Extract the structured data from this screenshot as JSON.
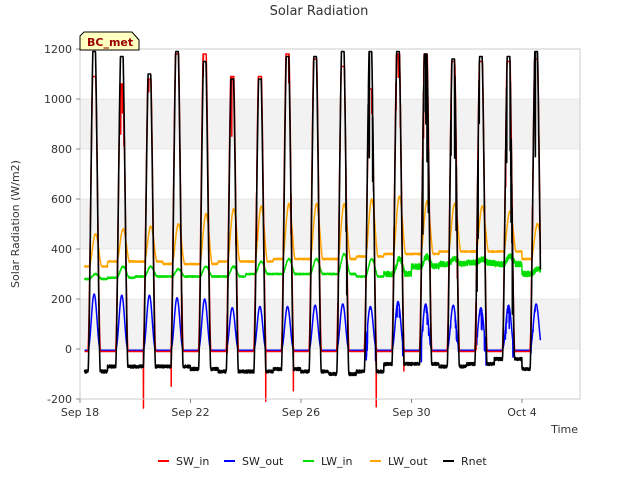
{
  "chart_data": {
    "type": "line",
    "title": "Solar Radiation",
    "xlabel": "Time",
    "ylabel": "Solar Radiation (W/m2)",
    "site_label": "BC_met",
    "x_start_day": "Sep 18",
    "x_tick_labels": [
      "Sep 18",
      "Sep 22",
      "Sep 26",
      "Sep 30",
      "Oct 4"
    ],
    "x_tick_days": [
      0,
      4,
      8,
      12,
      16
    ],
    "xlim_days": [
      0,
      18.1
    ],
    "ylim": [
      -200,
      1200
    ],
    "y_ticks": [
      -200,
      0,
      200,
      400,
      600,
      800,
      1000,
      1200
    ],
    "background_bands": true,
    "legend_position": "bottom",
    "num_days": 17,
    "series": [
      {
        "name": "SW_in",
        "color": "#ff0000",
        "day_peaks": [
          1090,
          1060,
          1080,
          1180,
          1180,
          1090,
          1090,
          1180,
          1160,
          1130,
          1040,
          1180,
          1180,
          1150,
          1150,
          1150,
          1160
        ],
        "night_value": -10
      },
      {
        "name": "SW_out",
        "color": "#0000ff",
        "day_peaks": [
          220,
          215,
          215,
          205,
          200,
          165,
          170,
          170,
          175,
          180,
          170,
          190,
          180,
          175,
          165,
          175,
          180
        ],
        "night_value": -5
      },
      {
        "name": "LW_in",
        "color": "#00dd00",
        "day_peaks": [
          300,
          330,
          330,
          320,
          330,
          330,
          350,
          360,
          360,
          380,
          360,
          360,
          370,
          360,
          360,
          370,
          320
        ],
        "night_values": [
          280,
          285,
          290,
          290,
          290,
          290,
          300,
          300,
          300,
          300,
          290,
          300,
          330,
          340,
          345,
          340,
          300
        ]
      },
      {
        "name": "LW_out",
        "color": "#ffa500",
        "day_peaks": [
          460,
          480,
          490,
          500,
          540,
          560,
          570,
          580,
          580,
          580,
          600,
          610,
          590,
          580,
          570,
          550,
          500
        ],
        "night_values": [
          330,
          350,
          350,
          340,
          340,
          350,
          350,
          360,
          360,
          360,
          370,
          380,
          380,
          390,
          390,
          390,
          360
        ]
      },
      {
        "name": "Rnet",
        "color": "#000000",
        "day_peaks": [
          1190,
          1170,
          1100,
          1190,
          1150,
          1080,
          1080,
          1170,
          1170,
          1190,
          1190,
          1190,
          1180,
          1160,
          1170,
          1170,
          1190
        ],
        "night_values": [
          -90,
          -70,
          -70,
          -70,
          -80,
          -90,
          -90,
          -80,
          -90,
          -100,
          -90,
          -60,
          -60,
          -70,
          -60,
          -40,
          -80
        ]
      }
    ]
  }
}
